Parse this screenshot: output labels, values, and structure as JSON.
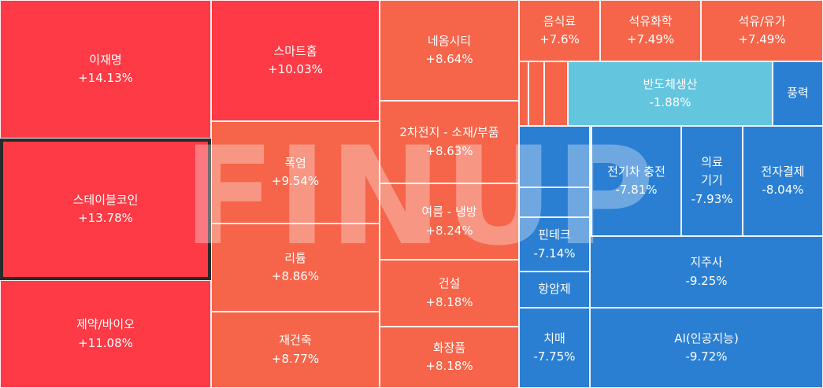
{
  "watermark": "FINUP",
  "colors": {
    "strong_up": "#fd3a45",
    "up": "#f6654a",
    "down": "#2a7fd3",
    "weak_down": "#63c5de"
  },
  "chart_data": {
    "type": "treemap",
    "title": "",
    "tiles": [
      {
        "name": "이재명",
        "change": "+14.13%",
        "value": 14.13,
        "color": "#fd3a45"
      },
      {
        "name": "스테이블코인",
        "change": "+13.78%",
        "value": 13.78,
        "color": "#fd3a45",
        "selected": true
      },
      {
        "name": "제약/바이오",
        "change": "+11.08%",
        "value": 11.08,
        "color": "#fd3a45"
      },
      {
        "name": "스마트홈",
        "change": "+10.03%",
        "value": 10.03,
        "color": "#fd3a45"
      },
      {
        "name": "폭염",
        "change": "+9.54%",
        "value": 9.54,
        "color": "#f6654a"
      },
      {
        "name": "리튬",
        "change": "+8.86%",
        "value": 8.86,
        "color": "#f6654a"
      },
      {
        "name": "재건축",
        "change": "+8.77%",
        "value": 8.77,
        "color": "#f6654a"
      },
      {
        "name": "네옴시티",
        "change": "+8.64%",
        "value": 8.64,
        "color": "#f6654a"
      },
      {
        "name": "2차전지 - 소재/부품",
        "change": "+8.63%",
        "value": 8.63,
        "color": "#f6654a"
      },
      {
        "name": "여름 - 냉방",
        "change": "+8.24%",
        "value": 8.24,
        "color": "#f6654a"
      },
      {
        "name": "건설",
        "change": "+8.18%",
        "value": 8.18,
        "color": "#f6654a"
      },
      {
        "name": "화장품",
        "change": "+8.18%",
        "value": 8.18,
        "color": "#f6654a"
      },
      {
        "name": "음식료",
        "change": "+7.6%",
        "value": 7.6,
        "color": "#f6654a"
      },
      {
        "name": "석유화학",
        "change": "+7.49%",
        "value": 7.49,
        "color": "#f6654a"
      },
      {
        "name": "석유/유가",
        "change": "+7.49%",
        "value": 7.49,
        "color": "#f6654a"
      },
      {
        "name": "",
        "change": "",
        "value": null,
        "color": "#f6654a"
      },
      {
        "name": "",
        "change": "",
        "value": null,
        "color": "#f6654a"
      },
      {
        "name": "",
        "change": "",
        "value": null,
        "color": "#f6654a"
      },
      {
        "name": "반도체생산",
        "change": "-1.88%",
        "value": -1.88,
        "color": "#63c5de"
      },
      {
        "name": "풍력",
        "change": "",
        "value": null,
        "color": "#2a7fd3"
      },
      {
        "name": "",
        "change": "",
        "value": null,
        "color": "#2a7fd3"
      },
      {
        "name": "",
        "change": "",
        "value": null,
        "color": "#2a7fd3"
      },
      {
        "name": "",
        "change": "",
        "value": null,
        "color": "#2a7fd3"
      },
      {
        "name": "전기차 충전",
        "change": "-7.81%",
        "value": -7.81,
        "color": "#2a7fd3"
      },
      {
        "name": "의료기기",
        "change": "-7.93%",
        "value": -7.93,
        "color": "#2a7fd3"
      },
      {
        "name": "전자결제",
        "change": "-8.04%",
        "value": -8.04,
        "color": "#2a7fd3"
      },
      {
        "name": "핀테크",
        "change": "-7.14%",
        "value": -7.14,
        "color": "#2a7fd3"
      },
      {
        "name": "항암제",
        "change": "",
        "value": null,
        "color": "#2a7fd3"
      },
      {
        "name": "치매",
        "change": "-7.75%",
        "value": -7.75,
        "color": "#2a7fd3"
      },
      {
        "name": "지주사",
        "change": "-9.25%",
        "value": -9.25,
        "color": "#2a7fd3"
      },
      {
        "name": "AI(인공지능)",
        "change": "-9.72%",
        "value": -9.72,
        "color": "#2a7fd3"
      }
    ]
  }
}
